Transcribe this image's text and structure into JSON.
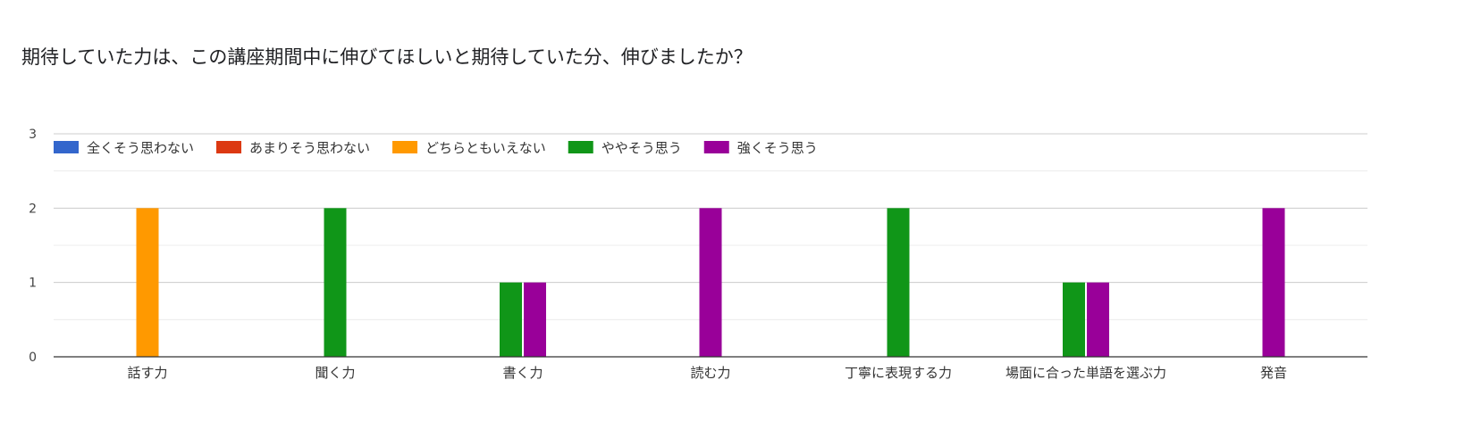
{
  "chart_data": {
    "type": "bar",
    "title": "期待していた力は、この講座期間中に伸びてほしいと期待していた分、伸びましたか？",
    "categories": [
      "話す力",
      "聞く力",
      "書く力",
      "読む力",
      "丁寧に表現する力",
      "場面に合った単語を選ぶ力",
      "発音"
    ],
    "series": [
      {
        "name": "全くそう思わない",
        "color": "#3366cc",
        "values": [
          0,
          0,
          0,
          0,
          0,
          0,
          0
        ]
      },
      {
        "name": "あまりそう思わない",
        "color": "#dc3912",
        "values": [
          0,
          0,
          0,
          0,
          0,
          0,
          0
        ]
      },
      {
        "name": "どちらともいえない",
        "color": "#ff9900",
        "values": [
          2,
          0,
          0,
          0,
          0,
          0,
          0
        ]
      },
      {
        "name": "ややそう思う",
        "color": "#109618",
        "values": [
          0,
          2,
          1,
          0,
          2,
          1,
          0
        ]
      },
      {
        "name": "強くそう思う",
        "color": "#990099",
        "values": [
          0,
          0,
          1,
          2,
          0,
          1,
          2
        ]
      }
    ],
    "ylim": [
      0,
      3
    ],
    "yticks": [
      "0",
      "1",
      "2",
      "3"
    ],
    "grid": true,
    "legend_position": "top-left"
  }
}
